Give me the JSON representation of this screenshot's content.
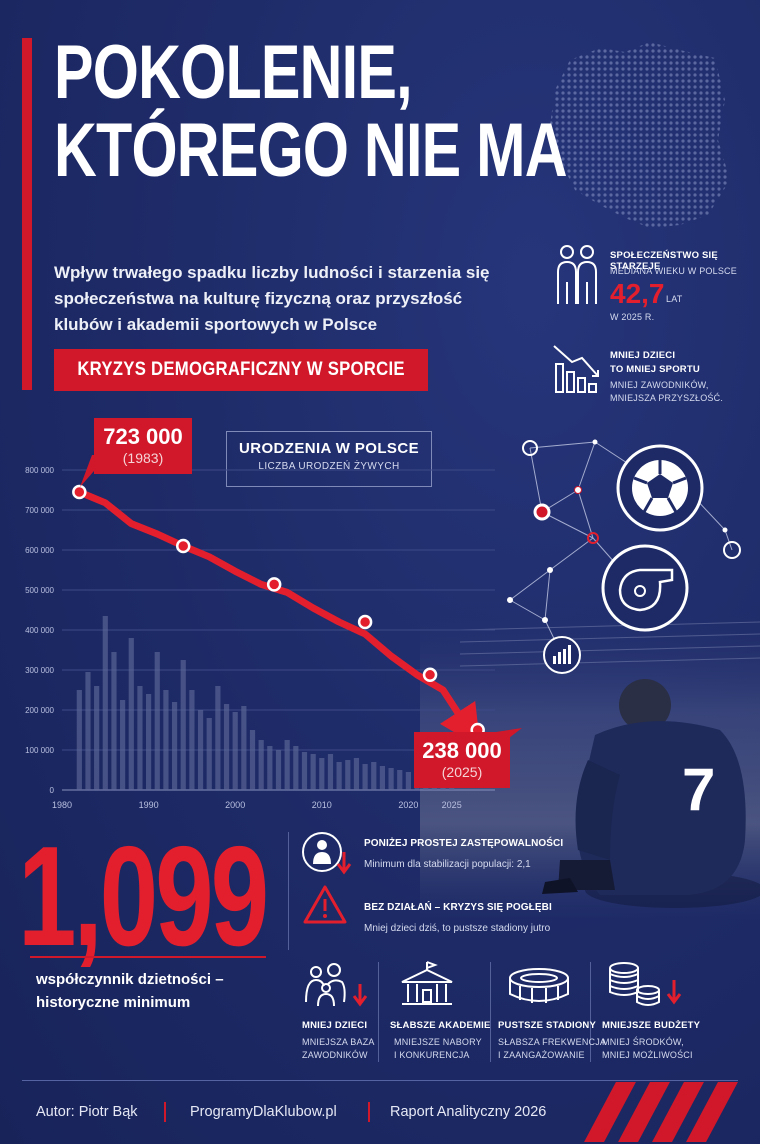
{
  "header": {
    "title_line1": "POKOLENIE,",
    "title_line2": "KTÓREGO NIE MA",
    "subtitle_line1": "Wpływ trwałego spadku liczby ludności i starzenia się",
    "subtitle_line2": "społeczeństwa na kulturę fizyczną oraz przyszłość",
    "subtitle_line3": "klubów i akademii sportowych w Polsce",
    "banner": "KRYZYS DEMOGRAFICZNY W SPORCIE"
  },
  "info": {
    "aging_title": "SPOŁECZEŃSTWO SIĘ STARZEJE",
    "aging_sub": "MEDIANA WIEKU W POLSCE",
    "aging_value": "42,7",
    "aging_unit": "LAT",
    "aging_year": "W 2025 R.",
    "sport_title1": "MNIEJ DZIECI",
    "sport_title2": "TO MNIEJ SPORTU",
    "sport_sub1": "MNIEJ ZAWODNIKÓW,",
    "sport_sub2": "MNIEJSZA PRZYSZŁOŚĆ."
  },
  "chart_data": {
    "type": "bar",
    "title": "URODZENIA W POLSCE",
    "subtitle": "LICZBA URODZEŃ ŻYWYCH",
    "ylim": [
      0,
      800000
    ],
    "xlim": [
      1980,
      2030
    ],
    "y_ticks": [
      "800 000",
      "700 000",
      "600 000",
      "500 000",
      "400 000",
      "300 000",
      "200 000",
      "100 000",
      "0"
    ],
    "y_tick_values": [
      800000,
      700000,
      600000,
      500000,
      400000,
      300000,
      200000,
      100000,
      0
    ],
    "x_ticks": [
      "1980",
      "1990",
      "2000",
      "2010",
      "2020",
      "2025"
    ],
    "x_tick_values": [
      1980,
      1990,
      2000,
      2010,
      2020,
      2025
    ],
    "bars_x": [
      1982,
      1983,
      1984,
      1985,
      1986,
      1987,
      1988,
      1989,
      1990,
      1991,
      1992,
      1993,
      1994,
      1995,
      1996,
      1997,
      1998,
      1999,
      2000,
      2001,
      2002,
      2003,
      2004,
      2005,
      2006,
      2007,
      2008,
      2009,
      2010,
      2011,
      2012,
      2013,
      2014,
      2015,
      2016,
      2017,
      2018,
      2019,
      2020,
      2021,
      2022,
      2023,
      2024,
      2025
    ],
    "bars_values": [
      250000,
      295000,
      260000,
      435000,
      345000,
      225000,
      380000,
      260000,
      240000,
      345000,
      250000,
      220000,
      325000,
      250000,
      200000,
      180000,
      260000,
      215000,
      195000,
      210000,
      150000,
      125000,
      110000,
      100000,
      125000,
      110000,
      95000,
      90000,
      80000,
      90000,
      70000,
      75000,
      80000,
      65000,
      70000,
      60000,
      55000,
      50000,
      45000,
      40000,
      35000,
      30000,
      25000,
      20000
    ],
    "line_x": [
      1982,
      1985,
      1988,
      1991,
      1994,
      1997,
      2000,
      2003,
      2006,
      2009,
      2012,
      2015,
      2018,
      2021,
      2024,
      2027
    ],
    "line_values": [
      745000,
      718000,
      666000,
      640000,
      610000,
      583000,
      547000,
      514000,
      494000,
      455000,
      420000,
      390000,
      335000,
      288000,
      250000,
      150000
    ],
    "markers": [
      {
        "x": 1982,
        "y": 745000
      },
      {
        "x": 1994,
        "y": 610000
      },
      {
        "x": 2004.5,
        "y": 514000
      },
      {
        "x": 2015,
        "y": 420000
      },
      {
        "x": 2022.5,
        "y": 288000
      },
      {
        "x": 2028,
        "y": 150000
      }
    ],
    "annotation_start_value": "723 000",
    "annotation_start_year": "(1983)",
    "annotation_end_value": "238 000",
    "annotation_end_year": "(2025)"
  },
  "stat": {
    "value": "1,099",
    "caption_line1": "współczynnik dzietności –",
    "caption_line2": "historyczne minimum"
  },
  "points": [
    {
      "title": "PONIŻEJ PROSTEJ ZASTĘPOWALNOŚCI",
      "sub": "Minimum dla stabilizacji populacji: 2,1"
    },
    {
      "title": "BEZ DZIAŁAŃ – KRYZYS SIĘ POGŁĘBI",
      "sub": "Mniej dzieci dziś, to pustsze stadiony jutro"
    }
  ],
  "columns": [
    {
      "title": "MNIEJ DZIECI",
      "sub1": "MNIEJSZA BAZA",
      "sub2": "ZAWODNIKÓW"
    },
    {
      "title": "SŁABSZE AKADEMIE",
      "sub1": "MNIEJSZE NABORY",
      "sub2": "I KONKURENCJA"
    },
    {
      "title": "PUSTSZE STADIONY",
      "sub1": "SŁABSZA FREKWENCJA",
      "sub2": "I ZAANGAŻOWANIE"
    },
    {
      "title": "MNIEJSZE BUDŻETY",
      "sub1": "MNIEJ ŚRODKÓW,",
      "sub2": "MNIEJ MOŻLIWOŚCI"
    }
  ],
  "player_number": "7",
  "footer": {
    "author": "Autor: Piotr Bąk",
    "site": "ProgramyDlaKlubow.pl",
    "report": "Raport Analityczny 2026"
  },
  "colors": {
    "background": "#1d2a66",
    "accent_red": "#d0182a",
    "bright_red": "#e31f2e",
    "text": "#ffffff"
  }
}
